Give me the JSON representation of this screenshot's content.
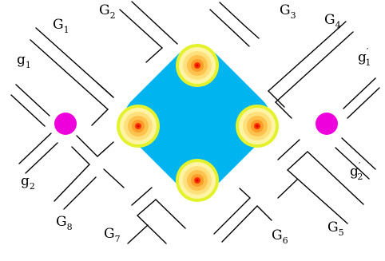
{
  "colors": {
    "chamber": "#00b4ef",
    "node": "#ee00dd",
    "ring_outer": "#e4f22e",
    "ring_1": "#fff4a6",
    "ring_2": "#ffe07a",
    "ring_3": "#ffc24d",
    "ring_4": "#ff9c2a",
    "core": "#ff3300",
    "core_dot": "#dd0000",
    "line": "#000000"
  },
  "labels": {
    "G1": {
      "base": "G",
      "sub": "1"
    },
    "G2": {
      "base": "G",
      "sub": "2"
    },
    "G3": {
      "base": "G",
      "sub": "3"
    },
    "G4": {
      "base": "G",
      "sub": "4"
    },
    "G5": {
      "base": "G",
      "sub": "5"
    },
    "G6": {
      "base": "G",
      "sub": "6"
    },
    "G7": {
      "base": "G",
      "sub": "7"
    },
    "G8": {
      "base": "G",
      "sub": "8"
    },
    "g1": {
      "base": "g",
      "sub": "1"
    },
    "g2": {
      "base": "g",
      "sub": "2"
    },
    "g1p": {
      "base": "g",
      "sub": "1",
      "sup": "′"
    },
    "g2p": {
      "base": "g",
      "sub": "2",
      "sup": "′"
    }
  }
}
